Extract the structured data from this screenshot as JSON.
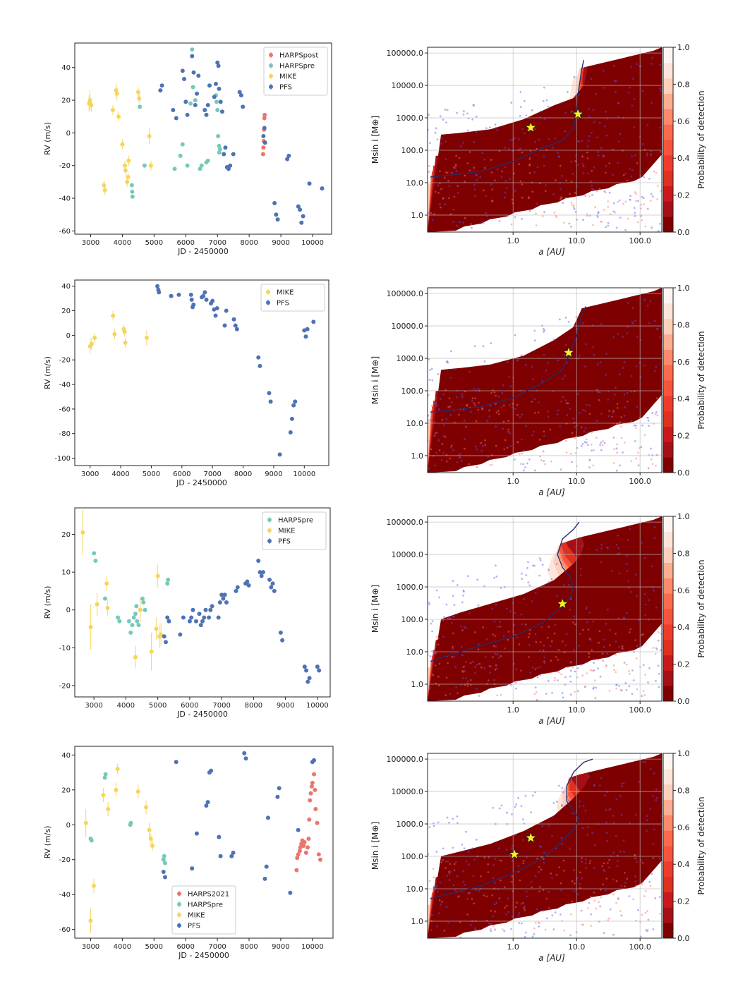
{
  "colors": {
    "HARPSpost": "#e8776c",
    "HARPSpre": "#76c9b9",
    "HARPS2021": "#e8776c",
    "MIKE": "#f6d55c",
    "PFS": "#4e73b4",
    "injected_points": "#5a55f0",
    "contour_line": "#2a2a6a",
    "star_fill": "#ffee22",
    "colormap": [
      "#7f0000",
      "#a50f15",
      "#cb181d",
      "#e0301e",
      "#ef3b2c",
      "#f6553c",
      "#fb6a4a",
      "#fc8a6a",
      "#fcae91",
      "#fdd0bc",
      "#fee5d9",
      "#fff5f0"
    ]
  },
  "chart_data": [
    {
      "type": "scatter",
      "xlabel": "JD - 2450000",
      "ylabel": "RV (m/s)",
      "xlim": [
        2500,
        10600
      ],
      "ylim": [
        -62,
        55
      ],
      "xticks": [
        3000,
        4000,
        5000,
        6000,
        7000,
        8000,
        9000,
        10000
      ],
      "yticks": [
        -60,
        -40,
        -20,
        0,
        20,
        40
      ],
      "legend_position": "top-right",
      "series": [
        {
          "name": "HARPSpost",
          "x": [
            8440,
            8450,
            8460,
            8470,
            8480,
            8490
          ],
          "y": [
            -13,
            -9,
            -5,
            2,
            9,
            11
          ]
        },
        {
          "name": "HARPSpre",
          "x": [
            4300,
            4310,
            4320,
            4550,
            4700,
            5650,
            5830,
            5900,
            6050,
            6150,
            6200,
            6230,
            6300,
            6450,
            6500,
            6650,
            6700,
            6950,
            6970,
            7000,
            7020,
            7050,
            7060,
            7080
          ],
          "y": [
            -32,
            -36,
            -39,
            16,
            -20,
            -22,
            -14,
            -7,
            -20,
            18,
            51,
            28,
            20,
            -22,
            -20,
            -18,
            -17,
            23,
            19,
            14,
            -2,
            -8,
            -12,
            -10
          ]
        },
        {
          "name": "MIKE",
          "x": [
            2950,
            2980,
            3020,
            3420,
            3450,
            3700,
            3800,
            3830,
            3880,
            4000,
            4080,
            4100,
            4150,
            4180,
            4200,
            4500,
            4530,
            4850,
            4900
          ],
          "y": [
            18,
            20,
            17,
            -32,
            -35,
            14,
            26,
            24,
            10,
            -7,
            -20,
            -23,
            -30,
            -27,
            -17,
            25,
            21,
            -2,
            -20
          ],
          "yerr": [
            5,
            6,
            4,
            3,
            3,
            3,
            4,
            4,
            3,
            3,
            3,
            3,
            3,
            3,
            3,
            3,
            3,
            5,
            3
          ]
        },
        {
          "name": "PFS",
          "x": [
            5200,
            5250,
            5600,
            5700,
            5900,
            5950,
            6000,
            6050,
            6200,
            6250,
            6300,
            6350,
            6400,
            6600,
            6650,
            6700,
            6750,
            6900,
            6950,
            7000,
            7030,
            7050,
            7100,
            7150,
            7200,
            7250,
            7300,
            7350,
            7400,
            7500,
            7700,
            7750,
            7800,
            8450,
            8480,
            8500,
            8800,
            8850,
            8900,
            9200,
            9250,
            9550,
            9600,
            9650,
            9700,
            9900,
            10300
          ],
          "y": [
            26,
            29,
            14,
            9,
            38,
            33,
            19,
            11,
            47,
            37,
            17,
            24,
            35,
            14,
            11,
            17,
            29,
            22,
            30,
            43,
            41,
            27,
            19,
            13,
            -13,
            -9,
            -21,
            -22,
            -20,
            -13,
            25,
            23,
            16,
            -2,
            3,
            -6,
            -43,
            -50,
            -53,
            -16,
            -14,
            -45,
            -47,
            -55,
            -51,
            -31,
            -34
          ]
        }
      ]
    },
    {
      "type": "contour",
      "colorbar_label": "Probability of detection",
      "colorbar_ticks": [
        0.0,
        0.2,
        0.4,
        0.6,
        0.8,
        1.0
      ],
      "xlabel": "a [AU]",
      "ylabel": "Msin i [M⊕]",
      "x_scale": "log",
      "y_scale": "log",
      "xtick_labels": [
        "1.0",
        "10.0",
        "100.0"
      ],
      "ytick_labels": [
        "1.0",
        "10.0",
        "100.0",
        "1000.0",
        "10000.0",
        "100000.0"
      ],
      "contour_50pct": {
        "a": [
          0.05,
          0.1,
          0.3,
          1,
          3,
          6,
          9,
          10,
          10.5,
          12,
          13
        ],
        "m": [
          15,
          17,
          22,
          45,
          120,
          200,
          500,
          1400,
          5000,
          30000,
          60000
        ]
      },
      "detected_planets": [
        {
          "a": 1.9,
          "m": 500
        },
        {
          "a": 10.5,
          "m": 1300
        }
      ]
    },
    {
      "type": "scatter",
      "xlabel": "JD - 2450000",
      "ylabel": "RV (m/s)",
      "xlim": [
        2500,
        10800
      ],
      "ylim": [
        -106,
        45
      ],
      "xticks": [
        3000,
        4000,
        5000,
        6000,
        7000,
        8000,
        9000,
        10000
      ],
      "yticks": [
        -100,
        -80,
        -60,
        -40,
        -20,
        0,
        20,
        40
      ],
      "legend_position": "top-right",
      "series": [
        {
          "name": "MIKE",
          "x": [
            3000,
            3050,
            3150,
            3750,
            3800,
            4100,
            4130,
            4150,
            4850
          ],
          "y": [
            -9,
            -7,
            -2,
            16,
            1,
            5,
            3,
            -6,
            -2
          ],
          "yerr": [
            6,
            5,
            4,
            4,
            4,
            4,
            4,
            4,
            6
          ]
        },
        {
          "name": "PFS",
          "x": [
            5200,
            5230,
            5250,
            5650,
            5900,
            6300,
            6320,
            6350,
            6380,
            6650,
            6700,
            6750,
            6800,
            6950,
            7000,
            7050,
            7100,
            7150,
            7400,
            7450,
            7700,
            7750,
            7800,
            8500,
            8550,
            8850,
            8900,
            9200,
            9550,
            9600,
            9650,
            9700,
            10000,
            10050,
            10100,
            10300
          ],
          "y": [
            40,
            37,
            35,
            32,
            33,
            33,
            29,
            23,
            25,
            31,
            32,
            35,
            29,
            26,
            28,
            21,
            16,
            22,
            8,
            20,
            13,
            8,
            5,
            -18,
            -25,
            -47,
            -54,
            -97,
            -79,
            -68,
            -57,
            -54,
            4,
            -1,
            5,
            11
          ]
        }
      ]
    },
    {
      "type": "contour",
      "colorbar_label": "Probability of detection",
      "colorbar_ticks": [
        0.0,
        0.2,
        0.4,
        0.6,
        0.8,
        1.0
      ],
      "xlabel": "a [AU]",
      "ylabel": "Msin i [M⊕]",
      "x_scale": "log",
      "y_scale": "log",
      "xtick_labels": [
        "1.0",
        "10.0",
        "100.0"
      ],
      "ytick_labels": [
        "1.0",
        "10.0",
        "100.0",
        "1000.0",
        "10000.0",
        "100000.0"
      ],
      "contour_50pct": {
        "a": [
          0.05,
          0.1,
          0.3,
          1,
          3,
          6,
          8,
          10,
          12,
          14
        ],
        "m": [
          22,
          25,
          32,
          60,
          180,
          450,
          1500,
          5000,
          20000,
          40000
        ]
      },
      "detected_planets": [
        {
          "a": 7.5,
          "m": 1500
        }
      ]
    },
    {
      "type": "scatter",
      "xlabel": "JD - 2450000",
      "ylabel": "RV (m/s)",
      "xlim": [
        2400,
        10400
      ],
      "ylim": [
        -23,
        27
      ],
      "xticks": [
        3000,
        4000,
        5000,
        6000,
        7000,
        8000,
        9000,
        10000
      ],
      "yticks": [
        -20,
        -10,
        0,
        10,
        20
      ],
      "legend_position": "top-right",
      "series": [
        {
          "name": "HARPSpre",
          "x": [
            3000,
            3050,
            3350,
            3750,
            3800,
            4100,
            4150,
            4200,
            4250,
            4300,
            4330,
            4350,
            4400,
            4450,
            4520,
            4550,
            4600,
            5300,
            5320
          ],
          "y": [
            15,
            13,
            3,
            -2,
            -3,
            -3,
            -6,
            -4,
            -2,
            -1,
            1,
            -3,
            -4,
            0,
            3,
            2,
            0,
            7,
            8
          ]
        },
        {
          "name": "MIKE",
          "x": [
            2650,
            2900,
            3100,
            3400,
            3430,
            4300,
            4450,
            4800,
            4950,
            5000,
            5050,
            5100
          ],
          "y": [
            20.5,
            -4.5,
            1.5,
            7,
            0.5,
            -12.5,
            0,
            -11,
            -5,
            9,
            -7,
            -6.5
          ],
          "yerr": [
            6,
            6,
            3,
            2,
            2,
            3,
            3,
            5,
            3,
            3,
            3,
            3
          ]
        },
        {
          "name": "PFS",
          "x": [
            5200,
            5250,
            5300,
            5350,
            5700,
            5800,
            6000,
            6050,
            6100,
            6200,
            6300,
            6350,
            6400,
            6450,
            6500,
            6600,
            6650,
            6700,
            6900,
            6950,
            7000,
            7050,
            7100,
            7150,
            7450,
            7500,
            7750,
            7800,
            7850,
            8150,
            8200,
            8250,
            8300,
            8500,
            8550,
            8600,
            8650,
            8850,
            8900,
            9600,
            9650,
            9700,
            9750,
            10000,
            10050
          ],
          "y": [
            -7,
            -8.5,
            -2,
            -3,
            -6.5,
            -2,
            -3,
            -2,
            0,
            -3,
            -1,
            -4,
            -3,
            -2,
            0,
            -2,
            0,
            1,
            -2,
            2,
            4,
            3,
            4,
            2,
            5,
            6,
            7,
            7.5,
            6.5,
            13,
            10,
            9,
            10,
            8,
            6,
            7,
            5,
            -6,
            -8,
            -15,
            -16,
            -19,
            -18,
            -15,
            -16
          ]
        }
      ]
    },
    {
      "type": "contour",
      "colorbar_label": "Probability of detection",
      "colorbar_ticks": [
        0.0,
        0.2,
        0.4,
        0.6,
        0.8,
        1.0
      ],
      "xlabel": "a [AU]",
      "ylabel": "Msin i [M⊕]",
      "x_scale": "log",
      "y_scale": "log",
      "xtick_labels": [
        "1.0",
        "10.0",
        "100.0"
      ],
      "ytick_labels": [
        "1.0",
        "10.0",
        "100.0",
        "1000.0",
        "10000.0",
        "100000.0"
      ],
      "contour_50pct": {
        "a": [
          0.05,
          0.1,
          0.3,
          1,
          3,
          6,
          8,
          9,
          8,
          6,
          5,
          6,
          9,
          11
        ],
        "m": [
          5,
          8,
          15,
          30,
          80,
          250,
          500,
          1000,
          2000,
          4000,
          10000,
          30000,
          60000,
          100000
        ]
      },
      "detected_planets": [
        {
          "a": 6.0,
          "m": 300
        }
      ]
    },
    {
      "type": "scatter",
      "xlabel": "JD - 2450000",
      "ylabel": "RV (m/s)",
      "xlim": [
        2500,
        10650
      ],
      "ylim": [
        -65,
        45
      ],
      "xticks": [
        3000,
        4000,
        5000,
        6000,
        7000,
        8000,
        9000,
        10000
      ],
      "yticks": [
        -60,
        -40,
        -20,
        0,
        20,
        40
      ],
      "legend_position": "bottom-center",
      "series": [
        {
          "name": "HARPS2021",
          "x": [
            9500,
            9520,
            9550,
            9600,
            9620,
            9650,
            9680,
            9700,
            9720,
            9750,
            9800,
            9850,
            9880,
            9900,
            9920,
            9950,
            9980,
            10000,
            10050,
            10080,
            10100,
            10150,
            10200,
            10250
          ],
          "y": [
            -26,
            -19,
            -17,
            -15,
            -13,
            -11,
            -9,
            -11,
            -12,
            -10,
            -16,
            -13,
            -8,
            3,
            14,
            18,
            22,
            24,
            29,
            20,
            9,
            1,
            -17,
            -20
          ]
        },
        {
          "name": "HARPSpre",
          "x": [
            3000,
            3030,
            3450,
            3470,
            4250,
            4270,
            5300,
            5320,
            5350
          ],
          "y": [
            -8,
            -9,
            27,
            29,
            0,
            1,
            -20,
            -18,
            -22
          ]
        },
        {
          "name": "MIKE",
          "x": [
            2850,
            3000,
            3100,
            3400,
            3550,
            3800,
            3850,
            4500,
            4750,
            4850,
            4900,
            4950
          ],
          "y": [
            1,
            -55,
            -35,
            17,
            9,
            20,
            32,
            19,
            10,
            -3,
            -8,
            -12
          ],
          "yerr": [
            8,
            7,
            4,
            4,
            4,
            4,
            3,
            4,
            4,
            4,
            3,
            3
          ]
        },
        {
          "name": "PFS",
          "x": [
            5300,
            5350,
            5700,
            6200,
            6350,
            6650,
            6700,
            6750,
            6800,
            7050,
            7100,
            7450,
            7500,
            7850,
            7900,
            8500,
            8550,
            8600,
            8900,
            8950,
            9300,
            9550,
            10000,
            10050
          ],
          "y": [
            -27,
            -30,
            36,
            -25,
            -5,
            11,
            13,
            30,
            31,
            -7,
            -18,
            -18,
            -16,
            41,
            38,
            -31,
            -24,
            4,
            16,
            21,
            -39,
            -3,
            36,
            37
          ]
        }
      ]
    },
    {
      "type": "contour",
      "colorbar_label": "Probability of detection",
      "colorbar_ticks": [
        0.0,
        0.2,
        0.4,
        0.6,
        0.8,
        1.0
      ],
      "xlabel": "a [AU]",
      "ylabel": "Msin i [M⊕]",
      "x_scale": "log",
      "y_scale": "log",
      "xtick_labels": [
        "1.0",
        "10.0",
        "100.0"
      ],
      "ytick_labels": [
        "1.0",
        "10.0",
        "100.0",
        "1000.0",
        "10000.0",
        "100000.0"
      ],
      "contour_50pct": {
        "a": [
          0.05,
          0.1,
          0.3,
          1,
          3,
          6,
          9,
          11,
          9,
          7,
          7,
          9,
          13,
          18
        ],
        "m": [
          5,
          7,
          12,
          30,
          90,
          300,
          700,
          1500,
          2500,
          5000,
          15000,
          40000,
          80000,
          100000
        ]
      },
      "detected_planets": [
        {
          "a": 1.05,
          "m": 115
        },
        {
          "a": 1.9,
          "m": 370
        }
      ]
    }
  ]
}
